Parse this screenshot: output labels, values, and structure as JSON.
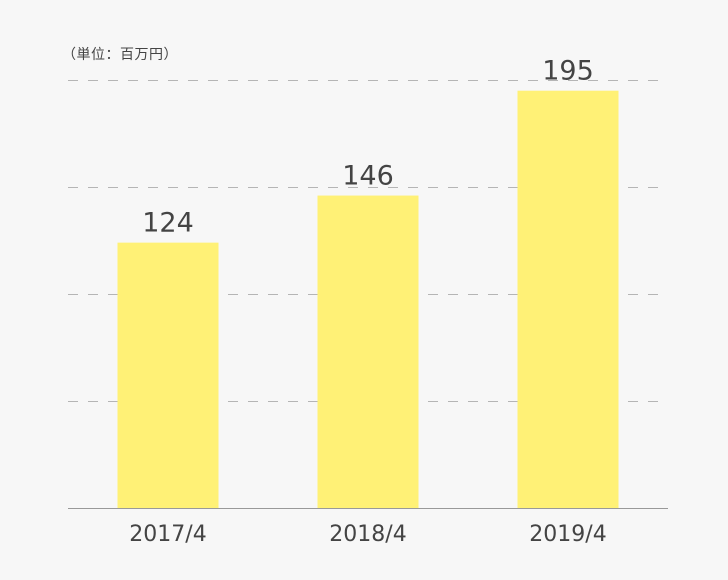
{
  "chart_data": {
    "type": "bar",
    "unit_label": "（単位：百万円）",
    "categories": [
      "2017/4",
      "2018/4",
      "2019/4"
    ],
    "values": [
      124,
      146,
      195
    ],
    "ylim": [
      0,
      200
    ],
    "grid": "dashed-horizontal",
    "bar_color": "#fff176",
    "grid_color": "#b5b5b5",
    "axis_color": "#999999",
    "text_color": "#444444"
  }
}
